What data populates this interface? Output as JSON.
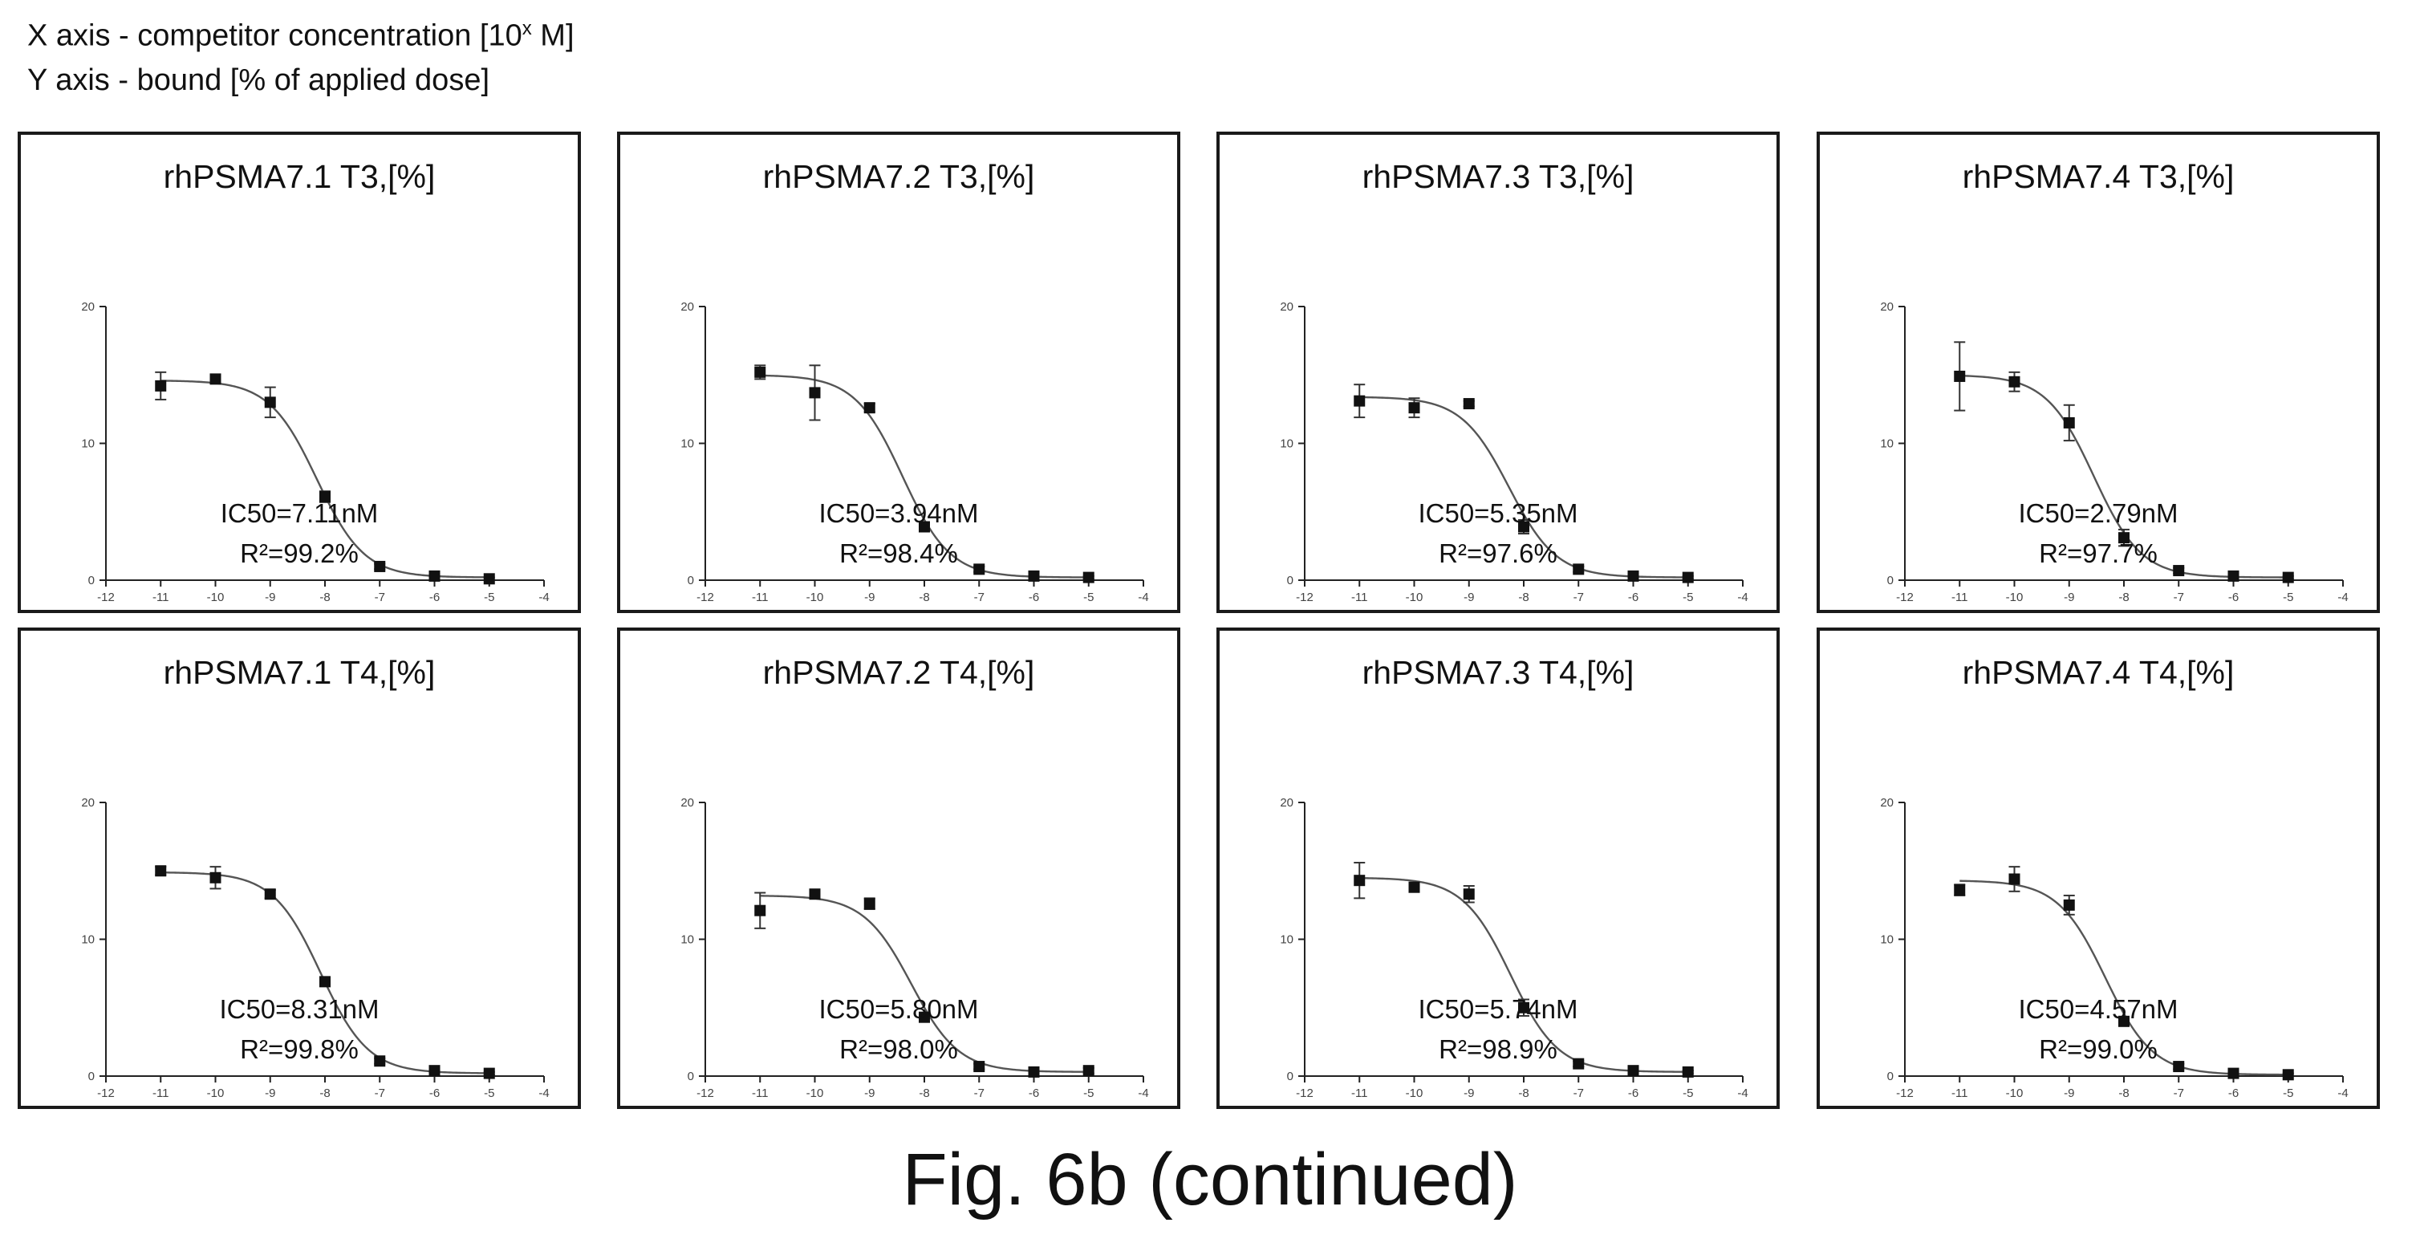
{
  "legend": {
    "x_prefix": "X axis - competitor concentration [10",
    "x_sup": "x",
    "x_suffix": " M]",
    "y": "Y axis - bound [% of applied dose]"
  },
  "caption": "Fig. 6b (continued)",
  "chart_data": [
    {
      "type": "scatter",
      "title": "rhPSMA7.1 T3,[%]",
      "xlim": [
        -12,
        -4
      ],
      "ylim": [
        0,
        20
      ],
      "xticks": [
        -12,
        -11,
        -10,
        -9,
        -8,
        -7,
        -6,
        -5,
        -4
      ],
      "yticks": [
        0,
        10,
        20
      ],
      "points": [
        {
          "x": -11,
          "y": 14.2,
          "err": 1.0
        },
        {
          "x": -10,
          "y": 14.7,
          "err": 0.3
        },
        {
          "x": -9,
          "y": 13.0,
          "err": 1.1
        },
        {
          "x": -8,
          "y": 6.1,
          "err": 0.4
        },
        {
          "x": -7,
          "y": 1.0,
          "err": 0.2
        },
        {
          "x": -6,
          "y": 0.3,
          "err": 0.1
        },
        {
          "x": -5,
          "y": 0.1,
          "err": 0.1
        }
      ],
      "fit": {
        "top": 14.6,
        "bottom": 0.2,
        "logIC50": -8.15,
        "hill": 1.0
      },
      "ic50": "IC50=7.11nM",
      "r2": "R²=99.2%"
    },
    {
      "type": "scatter",
      "title": "rhPSMA7.2 T3,[%]",
      "xlim": [
        -12,
        -4
      ],
      "ylim": [
        0,
        20
      ],
      "xticks": [
        -12,
        -11,
        -10,
        -9,
        -8,
        -7,
        -6,
        -5,
        -4
      ],
      "yticks": [
        0,
        10,
        20
      ],
      "points": [
        {
          "x": -11,
          "y": 15.2,
          "err": 0.5
        },
        {
          "x": -10,
          "y": 13.7,
          "err": 2.0
        },
        {
          "x": -9,
          "y": 12.6,
          "err": 0.3
        },
        {
          "x": -8,
          "y": 3.9,
          "err": 0.3
        },
        {
          "x": -7,
          "y": 0.8,
          "err": 0.2
        },
        {
          "x": -6,
          "y": 0.3,
          "err": 0.1
        },
        {
          "x": -5,
          "y": 0.2,
          "err": 0.1
        }
      ],
      "fit": {
        "top": 15.0,
        "bottom": 0.2,
        "logIC50": -8.4,
        "hill": 1.0
      },
      "ic50": "IC50=3.94nM",
      "r2": "R²=98.4%"
    },
    {
      "type": "scatter",
      "title": "rhPSMA7.3 T3,[%]",
      "xlim": [
        -12,
        -4
      ],
      "ylim": [
        0,
        20
      ],
      "xticks": [
        -12,
        -11,
        -10,
        -9,
        -8,
        -7,
        -6,
        -5,
        -4
      ],
      "yticks": [
        0,
        10,
        20
      ],
      "points": [
        {
          "x": -11,
          "y": 13.1,
          "err": 1.2
        },
        {
          "x": -10,
          "y": 12.6,
          "err": 0.7
        },
        {
          "x": -9,
          "y": 12.9,
          "err": 0.2
        },
        {
          "x": -8,
          "y": 3.9,
          "err": 0.5
        },
        {
          "x": -7,
          "y": 0.8,
          "err": 0.2
        },
        {
          "x": -6,
          "y": 0.3,
          "err": 0.1
        },
        {
          "x": -5,
          "y": 0.2,
          "err": 0.1
        }
      ],
      "fit": {
        "top": 13.4,
        "bottom": 0.2,
        "logIC50": -8.27,
        "hill": 1.0
      },
      "ic50": "IC50=5.35nM",
      "r2": "R²=97.6%"
    },
    {
      "type": "scatter",
      "title": "rhPSMA7.4 T3,[%]",
      "xlim": [
        -12,
        -4
      ],
      "ylim": [
        0,
        20
      ],
      "xticks": [
        -12,
        -11,
        -10,
        -9,
        -8,
        -7,
        -6,
        -5,
        -4
      ],
      "yticks": [
        0,
        10,
        20
      ],
      "points": [
        {
          "x": -11,
          "y": 14.9,
          "err": 2.5
        },
        {
          "x": -10,
          "y": 14.5,
          "err": 0.7
        },
        {
          "x": -9,
          "y": 11.5,
          "err": 1.3
        },
        {
          "x": -8,
          "y": 3.1,
          "err": 0.6
        },
        {
          "x": -7,
          "y": 0.7,
          "err": 0.2
        },
        {
          "x": -6,
          "y": 0.3,
          "err": 0.1
        },
        {
          "x": -5,
          "y": 0.2,
          "err": 0.1
        }
      ],
      "fit": {
        "top": 15.0,
        "bottom": 0.2,
        "logIC50": -8.55,
        "hill": 1.0
      },
      "ic50": "IC50=2.79nM",
      "r2": "R²=97.7%"
    },
    {
      "type": "scatter",
      "title": "rhPSMA7.1 T4,[%]",
      "xlim": [
        -12,
        -4
      ],
      "ylim": [
        0,
        20
      ],
      "xticks": [
        -12,
        -11,
        -10,
        -9,
        -8,
        -7,
        -6,
        -5,
        -4
      ],
      "yticks": [
        0,
        10,
        20
      ],
      "points": [
        {
          "x": -11,
          "y": 15.0,
          "err": 0.3
        },
        {
          "x": -10,
          "y": 14.5,
          "err": 0.8
        },
        {
          "x": -9,
          "y": 13.3,
          "err": 0.3
        },
        {
          "x": -8,
          "y": 6.9,
          "err": 0.3
        },
        {
          "x": -7,
          "y": 1.1,
          "err": 0.2
        },
        {
          "x": -6,
          "y": 0.4,
          "err": 0.1
        },
        {
          "x": -5,
          "y": 0.2,
          "err": 0.1
        }
      ],
      "fit": {
        "top": 14.9,
        "bottom": 0.2,
        "logIC50": -8.08,
        "hill": 1.0
      },
      "ic50": "IC50=8.31nM",
      "r2": "R²=99.8%"
    },
    {
      "type": "scatter",
      "title": "rhPSMA7.2 T4,[%]",
      "xlim": [
        -12,
        -4
      ],
      "ylim": [
        0,
        20
      ],
      "xticks": [
        -12,
        -11,
        -10,
        -9,
        -8,
        -7,
        -6,
        -5,
        -4
      ],
      "yticks": [
        0,
        10,
        20
      ],
      "points": [
        {
          "x": -11,
          "y": 12.1,
          "err": 1.3
        },
        {
          "x": -10,
          "y": 13.3,
          "err": 0.2
        },
        {
          "x": -9,
          "y": 12.6,
          "err": 0.4
        },
        {
          "x": -8,
          "y": 4.3,
          "err": 0.3
        },
        {
          "x": -7,
          "y": 0.7,
          "err": 0.2
        },
        {
          "x": -6,
          "y": 0.3,
          "err": 0.1
        },
        {
          "x": -5,
          "y": 0.4,
          "err": 0.2
        }
      ],
      "fit": {
        "top": 13.2,
        "bottom": 0.3,
        "logIC50": -8.24,
        "hill": 1.0
      },
      "ic50": "IC50=5.80nM",
      "r2": "R²=98.0%"
    },
    {
      "type": "scatter",
      "title": "rhPSMA7.3 T4,[%]",
      "xlim": [
        -12,
        -4
      ],
      "ylim": [
        0,
        20
      ],
      "xticks": [
        -12,
        -11,
        -10,
        -9,
        -8,
        -7,
        -6,
        -5,
        -4
      ],
      "yticks": [
        0,
        10,
        20
      ],
      "points": [
        {
          "x": -11,
          "y": 14.3,
          "err": 1.3
        },
        {
          "x": -10,
          "y": 13.8,
          "err": 0.3
        },
        {
          "x": -9,
          "y": 13.3,
          "err": 0.6
        },
        {
          "x": -8,
          "y": 5.0,
          "err": 0.6
        },
        {
          "x": -7,
          "y": 0.9,
          "err": 0.2
        },
        {
          "x": -6,
          "y": 0.4,
          "err": 0.1
        },
        {
          "x": -5,
          "y": 0.3,
          "err": 0.1
        }
      ],
      "fit": {
        "top": 14.5,
        "bottom": 0.3,
        "logIC50": -8.24,
        "hill": 1.0
      },
      "ic50": "IC50=5.74nM",
      "r2": "R²=98.9%"
    },
    {
      "type": "scatter",
      "title": "rhPSMA7.4 T4,[%]",
      "xlim": [
        -12,
        -4
      ],
      "ylim": [
        0,
        20
      ],
      "xticks": [
        -12,
        -11,
        -10,
        -9,
        -8,
        -7,
        -6,
        -5,
        -4
      ],
      "yticks": [
        0,
        10,
        20
      ],
      "points": [
        {
          "x": -11,
          "y": 13.6,
          "err": 0.4
        },
        {
          "x": -10,
          "y": 14.4,
          "err": 0.9
        },
        {
          "x": -9,
          "y": 12.5,
          "err": 0.7
        },
        {
          "x": -8,
          "y": 4.0,
          "err": 0.3
        },
        {
          "x": -7,
          "y": 0.7,
          "err": 0.2
        },
        {
          "x": -6,
          "y": 0.2,
          "err": 0.1
        },
        {
          "x": -5,
          "y": 0.1,
          "err": 0.1
        }
      ],
      "fit": {
        "top": 14.3,
        "bottom": 0.1,
        "logIC50": -8.34,
        "hill": 1.0
      },
      "ic50": "IC50=4.57nM",
      "r2": "R²=99.0%"
    }
  ]
}
